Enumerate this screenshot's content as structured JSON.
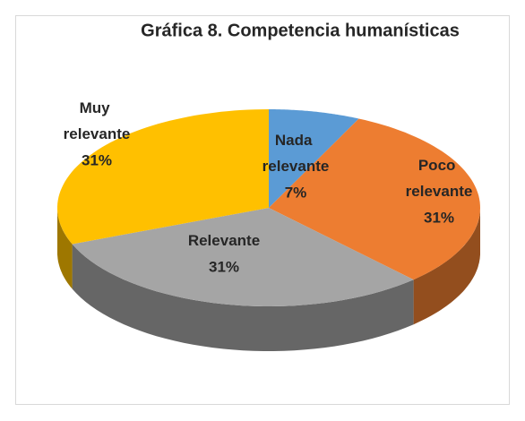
{
  "chart_data": {
    "type": "pie",
    "title": "Gráfica 8. Competencia humanísticas",
    "categories": [
      "Nada relevante",
      "Poco relevante",
      "Relevante",
      "Muy relevante"
    ],
    "values": [
      7,
      31,
      31,
      31
    ],
    "value_labels": [
      "7%",
      "31%",
      "31%",
      "31%"
    ],
    "colors": [
      "#5b9bd5",
      "#ed7d31",
      "#a5a5a5",
      "#ffc000"
    ]
  }
}
